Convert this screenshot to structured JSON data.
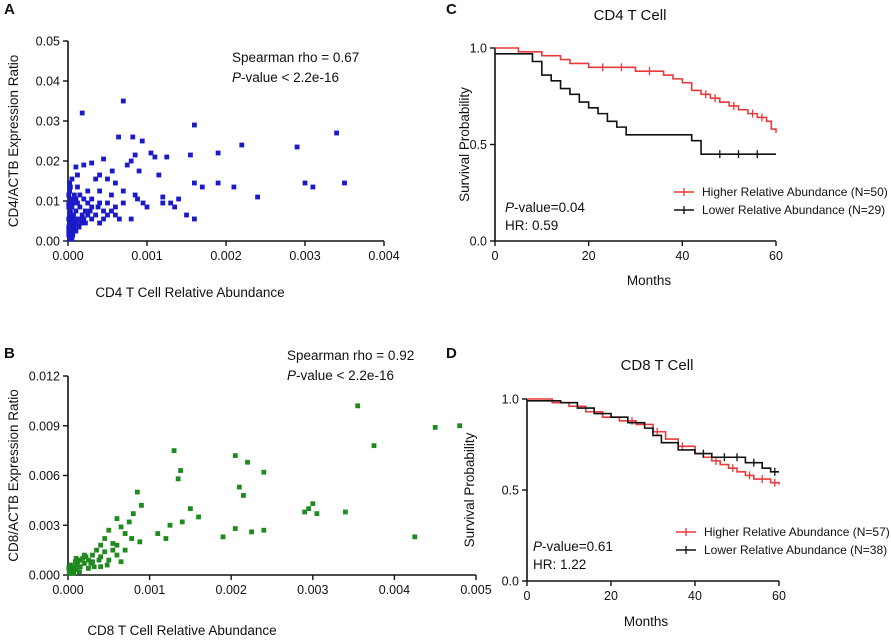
{
  "chart_data": [
    {
      "panel": "A",
      "type": "scatter",
      "title": "",
      "xlabel": "CD4 T Cell Relative Abundance",
      "ylabel": "CD4/ACTB Expression Ratio",
      "xlim": [
        0,
        0.004
      ],
      "ylim": [
        0,
        0.05
      ],
      "xticks": [
        "0.000",
        "0.001",
        "0.002",
        "0.003",
        "0.004"
      ],
      "yticks": [
        "0.00",
        "0.01",
        "0.02",
        "0.03",
        "0.04",
        "0.05"
      ],
      "color": "#1a1ac8",
      "annotation": {
        "line1": "Spearman rho = 0.67",
        "line2_italic": "P",
        "line2_rest": "-value < 2.2e-16"
      },
      "points": [
        [
          0.0007,
          0.035
        ],
        [
          0.00018,
          0.032
        ],
        [
          0.0034,
          0.027
        ],
        [
          0.0016,
          0.029
        ],
        [
          0.00064,
          0.026
        ],
        [
          0.00082,
          0.026
        ],
        [
          0.00094,
          0.025
        ],
        [
          0.0022,
          0.024
        ],
        [
          0.0029,
          0.0235
        ],
        [
          0.0019,
          0.022
        ],
        [
          0.00105,
          0.022
        ],
        [
          0.00085,
          0.0215
        ],
        [
          0.0011,
          0.021
        ],
        [
          0.00125,
          0.021
        ],
        [
          0.00155,
          0.0215
        ],
        [
          0.0008,
          0.02
        ],
        [
          0.00045,
          0.0205
        ],
        [
          0.00056,
          0.0175
        ],
        [
          0.0003,
          0.0195
        ],
        [
          0.0002,
          0.019
        ],
        [
          0.0001,
          0.0185
        ],
        [
          0.00075,
          0.019
        ],
        [
          0.0009,
          0.0175
        ],
        [
          0.00115,
          0.0165
        ],
        [
          0.0016,
          0.0145
        ],
        [
          0.0017,
          0.0135
        ],
        [
          0.0019,
          0.0145
        ],
        [
          0.0021,
          0.0135
        ],
        [
          0.003,
          0.0145
        ],
        [
          0.0035,
          0.0145
        ],
        [
          0.0031,
          0.0135
        ],
        [
          0.0024,
          0.011
        ],
        [
          0.0005,
          0.0155
        ],
        [
          0.0006,
          0.0145
        ],
        [
          0.0004,
          0.0165
        ],
        [
          0.00035,
          0.0155
        ],
        [
          0.00012,
          0.0165
        ],
        [
          5e-05,
          0.0155
        ],
        [
          2e-05,
          0.0145
        ],
        [
          3e-05,
          0.0135
        ],
        [
          0.00012,
          0.0135
        ],
        [
          0.00025,
          0.0125
        ],
        [
          0.00015,
          0.0115
        ],
        [
          0.0004,
          0.0125
        ],
        [
          0.00055,
          0.0115
        ],
        [
          0.0007,
          0.0125
        ],
        [
          0.00085,
          0.0115
        ],
        [
          0.0012,
          0.011
        ],
        [
          0.00135,
          0.0085
        ],
        [
          0.0014,
          0.0105
        ],
        [
          0.00088,
          0.0105
        ],
        [
          0.00095,
          0.0095
        ],
        [
          0.0012,
          0.0095
        ],
        [
          0.0013,
          0.0095
        ],
        [
          0.001,
          0.0085
        ],
        [
          0.0015,
          0.0065
        ],
        [
          0.0016,
          0.0055
        ],
        [
          0.0008,
          0.0055
        ],
        [
          0.0006,
          0.0065
        ],
        [
          0.00065,
          0.0055
        ],
        [
          0.0005,
          0.0095
        ],
        [
          0.00045,
          0.0075
        ],
        [
          0.0004,
          0.0095
        ],
        [
          0.0003,
          0.0105
        ],
        [
          0.0003,
          0.0085
        ],
        [
          0.00025,
          0.0095
        ],
        [
          0.00022,
          0.0075
        ],
        [
          0.0002,
          0.0105
        ],
        [
          0.00018,
          0.0055
        ],
        [
          0.00015,
          0.0085
        ],
        [
          0.00012,
          0.0095
        ],
        [
          0.0001,
          0.0075
        ],
        [
          0.0001,
          0.0105
        ],
        [
          8e-05,
          0.0115
        ],
        [
          6e-05,
          0.0095
        ],
        [
          5e-05,
          0.0085
        ],
        [
          4e-05,
          0.0105
        ],
        [
          3e-05,
          0.0075
        ],
        [
          2e-05,
          0.0065
        ],
        [
          1e-05,
          0.0055
        ],
        [
          1e-05,
          0.0095
        ],
        [
          1e-05,
          0.0085
        ],
        [
          2e-05,
          0.0045
        ],
        [
          3e-05,
          0.0035
        ],
        [
          4e-05,
          0.0025
        ],
        [
          3e-05,
          0.0015
        ],
        [
          2e-05,
          0.0005
        ],
        [
          1e-05,
          0.0025
        ],
        [
          1e-05,
          0.0035
        ],
        [
          5e-05,
          0.0005
        ],
        [
          6e-05,
          0.0015
        ],
        [
          8e-05,
          0.0035
        ],
        [
          0.0001,
          0.0045
        ],
        [
          0.0001,
          0.0025
        ],
        [
          0.00012,
          0.0055
        ],
        [
          0.00014,
          0.0035
        ],
        [
          0.00016,
          0.0045
        ],
        [
          0.00018,
          0.0065
        ],
        [
          0.0002,
          0.0055
        ],
        [
          0.00022,
          0.0045
        ],
        [
          0.00025,
          0.0065
        ],
        [
          0.00028,
          0.0075
        ],
        [
          0.0003,
          0.0055
        ],
        [
          0.00035,
          0.0065
        ],
        [
          0.00038,
          0.0085
        ],
        [
          0.0004,
          0.0045
        ],
        [
          0.00045,
          0.0055
        ],
        [
          0.0005,
          0.0065
        ],
        [
          0.00055,
          0.0075
        ],
        [
          0.0006,
          0.0085
        ],
        [
          0.0007,
          0.0095
        ],
        [
          1e-05,
          0.0115
        ],
        [
          2e-05,
          0.0125
        ],
        [
          4e-05,
          0.0045
        ],
        [
          6e-05,
          0.0055
        ],
        [
          7e-05,
          0.0065
        ],
        [
          3e-05,
          0.0055
        ],
        [
          1e-05,
          0.0015
        ],
        [
          2e-05,
          0.0025
        ],
        [
          7e-05,
          0.0025
        ]
      ]
    },
    {
      "panel": "B",
      "type": "scatter",
      "title": "",
      "xlabel": "CD8 T Cell Relative Abundance",
      "ylabel": "CD8/ACTB Expression Ratio",
      "xlim": [
        0,
        0.005
      ],
      "ylim": [
        0,
        0.012
      ],
      "xticks": [
        "0.000",
        "0.001",
        "0.002",
        "0.003",
        "0.004",
        "0.005"
      ],
      "yticks": [
        "0.000",
        "0.003",
        "0.006",
        "0.009",
        "0.012"
      ],
      "color": "#1f8a1f",
      "annotation": {
        "line1": "Spearman rho = 0.92",
        "line2_italic": "P",
        "line2_rest": "-value < 2.2e-16"
      },
      "points": [
        [
          0.00355,
          0.0102
        ],
        [
          0.0045,
          0.0089
        ],
        [
          0.0048,
          0.009
        ],
        [
          0.00375,
          0.0078
        ],
        [
          0.0013,
          0.0075
        ],
        [
          0.00205,
          0.0072
        ],
        [
          0.0022,
          0.0068
        ],
        [
          0.00138,
          0.0063
        ],
        [
          0.0024,
          0.0062
        ],
        [
          0.00135,
          0.0058
        ],
        [
          0.0021,
          0.0053
        ],
        [
          0.00085,
          0.005
        ],
        [
          0.00215,
          0.0048
        ],
        [
          0.0015,
          0.004
        ],
        [
          0.0016,
          0.0035
        ],
        [
          0.0014,
          0.0032
        ],
        [
          0.00125,
          0.003
        ],
        [
          0.0011,
          0.0025
        ],
        [
          0.0012,
          0.0022
        ],
        [
          0.00205,
          0.0028
        ],
        [
          0.00225,
          0.0026
        ],
        [
          0.0024,
          0.0027
        ],
        [
          0.0019,
          0.0023
        ],
        [
          0.00295,
          0.004
        ],
        [
          0.003,
          0.0043
        ],
        [
          0.0029,
          0.0038
        ],
        [
          0.00305,
          0.0037
        ],
        [
          0.0034,
          0.0038
        ],
        [
          0.00425,
          0.0023
        ],
        [
          0.0009,
          0.0042
        ],
        [
          0.0008,
          0.0037
        ],
        [
          0.00075,
          0.0032
        ],
        [
          0.0006,
          0.0034
        ],
        [
          0.00065,
          0.0029
        ],
        [
          0.0005,
          0.0027
        ],
        [
          0.0007,
          0.0025
        ],
        [
          0.00078,
          0.0022
        ],
        [
          0.00088,
          0.002
        ],
        [
          0.0006,
          0.0018
        ],
        [
          0.0007,
          0.0015
        ],
        [
          0.00045,
          0.0022
        ],
        [
          0.0004,
          0.0018
        ],
        [
          0.00055,
          0.0015
        ],
        [
          0.0006,
          0.0012
        ],
        [
          0.00035,
          0.0015
        ],
        [
          0.0003,
          0.0012
        ],
        [
          0.0004,
          0.0011
        ],
        [
          0.00025,
          0.0009
        ],
        [
          0.0003,
          0.0008
        ],
        [
          0.0002,
          0.0012
        ],
        [
          0.0002,
          0.0007
        ],
        [
          0.00015,
          0.0009
        ],
        [
          0.00015,
          0.0005
        ],
        [
          0.0001,
          0.0006
        ],
        [
          0.0001,
          0.0003
        ],
        [
          8e-05,
          0.0004
        ],
        [
          5e-05,
          0.0002
        ],
        [
          4e-05,
          0.0003
        ],
        [
          2e-05,
          0.0001
        ],
        [
          6e-05,
          0.0005
        ],
        [
          0.00012,
          0.0008
        ],
        [
          0.00018,
          0.001
        ],
        [
          0.00022,
          0.0011
        ],
        [
          0.00028,
          0.0007
        ],
        [
          0.00032,
          0.0005
        ],
        [
          0.00038,
          0.0009
        ],
        [
          0.00045,
          0.0014
        ],
        [
          0.0005,
          0.0009
        ],
        [
          0.00065,
          0.0008
        ],
        [
          3e-05,
          0.0006
        ],
        [
          0.0001,
          0.001
        ],
        [
          0.00014,
          0.0002
        ],
        [
          1e-05,
          0.0004
        ],
        [
          2e-05,
          0.0002
        ],
        [
          7e-05,
          0.0001
        ],
        [
          9e-05,
          0.0008
        ],
        [
          0.00025,
          0.0004
        ],
        [
          0.0004,
          0.0005
        ],
        [
          0.00048,
          0.0006
        ],
        [
          0.00055,
          0.0019
        ]
      ]
    },
    {
      "panel": "C",
      "type": "line",
      "subtype": "kaplan-meier",
      "title": "CD4 T Cell",
      "xlabel": "Months",
      "ylabel": "Survival Probability",
      "xlim": [
        0,
        60
      ],
      "ylim": [
        0,
        1.0
      ],
      "xticks": [
        "0",
        "20",
        "40",
        "60"
      ],
      "yticks": [
        "0.0",
        "0.5",
        "1.0"
      ],
      "annotation": {
        "line1_italic": "P",
        "line1_rest": "-value=0.04",
        "line2": "HR: 0.59"
      },
      "series": [
        {
          "name": "Higher Relative Abundance (N=50)",
          "color": "#e83a3a",
          "steps": [
            [
              0,
              1.0
            ],
            [
              5,
              0.98
            ],
            [
              10,
              0.96
            ],
            [
              14,
              0.94
            ],
            [
              16,
              0.92
            ],
            [
              20,
              0.9
            ],
            [
              30,
              0.88
            ],
            [
              36,
              0.86
            ],
            [
              38,
              0.84
            ],
            [
              40,
              0.82
            ],
            [
              42,
              0.78
            ],
            [
              44,
              0.76
            ],
            [
              46,
              0.74
            ],
            [
              48,
              0.72
            ],
            [
              50,
              0.7
            ],
            [
              52,
              0.68
            ],
            [
              54,
              0.66
            ],
            [
              56,
              0.64
            ],
            [
              58,
              0.62
            ],
            [
              59,
              0.58
            ],
            [
              60,
              0.56
            ]
          ],
          "censor_x": [
            23,
            27,
            33,
            45,
            47,
            51,
            55,
            57
          ]
        },
        {
          "name": "Lower Relative Abundance (N=29)",
          "color": "#111111",
          "steps": [
            [
              0,
              0.97
            ],
            [
              8,
              0.93
            ],
            [
              10,
              0.86
            ],
            [
              12,
              0.83
            ],
            [
              14,
              0.79
            ],
            [
              16,
              0.76
            ],
            [
              18,
              0.72
            ],
            [
              20,
              0.69
            ],
            [
              22,
              0.66
            ],
            [
              24,
              0.62
            ],
            [
              26,
              0.59
            ],
            [
              28,
              0.55
            ],
            [
              42,
              0.52
            ],
            [
              44,
              0.45
            ],
            [
              60,
              0.45
            ]
          ],
          "censor_x": [
            48,
            52,
            56
          ]
        }
      ]
    },
    {
      "panel": "D",
      "type": "line",
      "subtype": "kaplan-meier",
      "title": "CD8 T Cell",
      "xlabel": "Months",
      "ylabel": "Survival Probability",
      "xlim": [
        0,
        60
      ],
      "ylim": [
        0,
        1.0
      ],
      "xticks": [
        "0",
        "20",
        "40",
        "60"
      ],
      "yticks": [
        "0.0",
        "0.5",
        "1.0"
      ],
      "annotation": {
        "line1_italic": "P",
        "line1_rest": "-value=0.61",
        "line2": "HR: 1.22"
      },
      "series": [
        {
          "name": "Higher Relative Abundance (N=57)",
          "color": "#e83a3a",
          "steps": [
            [
              0,
              1.0
            ],
            [
              6,
              0.98
            ],
            [
              10,
              0.96
            ],
            [
              14,
              0.93
            ],
            [
              18,
              0.9
            ],
            [
              22,
              0.88
            ],
            [
              26,
              0.86
            ],
            [
              30,
              0.82
            ],
            [
              33,
              0.78
            ],
            [
              36,
              0.74
            ],
            [
              40,
              0.7
            ],
            [
              42,
              0.68
            ],
            [
              44,
              0.66
            ],
            [
              46,
              0.64
            ],
            [
              48,
              0.62
            ],
            [
              50,
              0.6
            ],
            [
              52,
              0.58
            ],
            [
              54,
              0.56
            ],
            [
              58,
              0.54
            ],
            [
              60,
              0.53
            ]
          ],
          "censor_x": [
            25,
            31,
            37,
            45,
            49,
            53,
            56,
            59
          ]
        },
        {
          "name": "Lower Relative Abundance (N=38)",
          "color": "#111111",
          "steps": [
            [
              0,
              0.99
            ],
            [
              8,
              0.98
            ],
            [
              12,
              0.95
            ],
            [
              16,
              0.92
            ],
            [
              20,
              0.9
            ],
            [
              24,
              0.87
            ],
            [
              28,
              0.84
            ],
            [
              30,
              0.8
            ],
            [
              32,
              0.76
            ],
            [
              36,
              0.72
            ],
            [
              40,
              0.7
            ],
            [
              44,
              0.68
            ],
            [
              52,
              0.65
            ],
            [
              56,
              0.62
            ],
            [
              58,
              0.6
            ],
            [
              60,
              0.6
            ]
          ],
          "censor_x": [
            42,
            47,
            50,
            54,
            59
          ]
        }
      ]
    }
  ]
}
